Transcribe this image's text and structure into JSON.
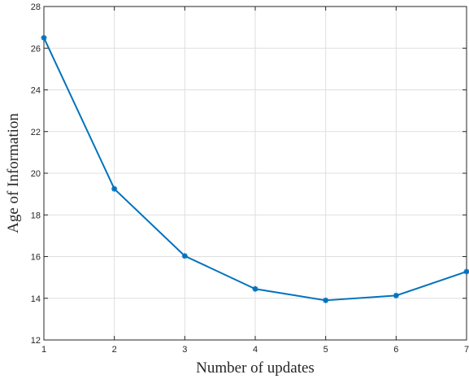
{
  "chart_data": {
    "type": "line",
    "title": "",
    "xlabel": "Number of updates",
    "ylabel": "Age of Information",
    "xlim": [
      1,
      7
    ],
    "ylim": [
      12,
      28
    ],
    "xticks": [
      1,
      2,
      3,
      4,
      5,
      6,
      7
    ],
    "yticks": [
      12,
      14,
      16,
      18,
      20,
      22,
      24,
      26,
      28
    ],
    "grid": true,
    "series": [
      {
        "x": [
          1,
          2,
          3,
          4,
          5,
          6,
          7
        ],
        "values": [
          26.5,
          19.25,
          16.03,
          14.45,
          13.9,
          14.13,
          15.28
        ],
        "color": "#0072bd",
        "marker": "asterisk"
      }
    ]
  }
}
